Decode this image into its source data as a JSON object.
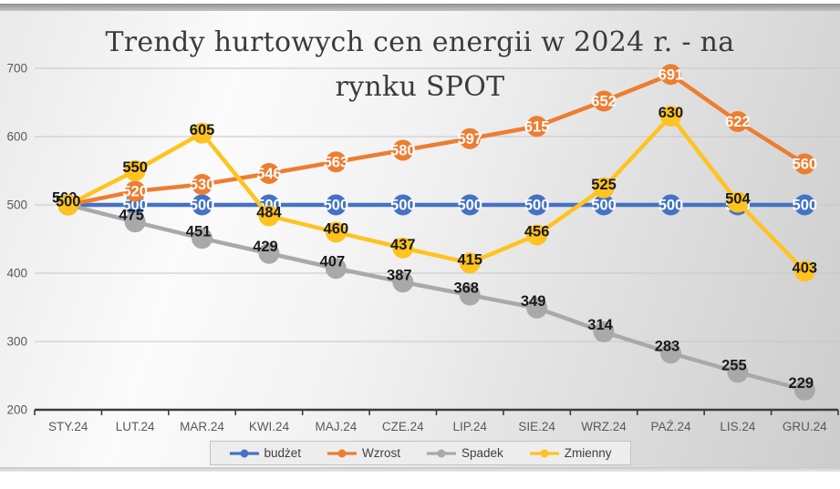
{
  "title": {
    "lines": [
      "Trendy hurtowych cen energii w 2024 r. - na",
      "rynku SPOT"
    ],
    "full": "Trendy hurtowych cen energii w 2024 r. - na rynku SPOT"
  },
  "chart_data": {
    "type": "line",
    "title": "Trendy hurtowych cen energii w 2024 r. - na rynku SPOT",
    "categories": [
      "STY.24",
      "LUT.24",
      "MAR.24",
      "KWI.24",
      "MAJ.24",
      "CZE.24",
      "LIP.24",
      "SIE.24",
      "WRZ.24",
      "PAŹ.24",
      "LIS.24",
      "GRU.24"
    ],
    "series": [
      {
        "name": "budżet",
        "color": "#4472c4",
        "label_color": "#ffffff",
        "values": [
          500,
          500,
          500,
          500,
          500,
          500,
          500,
          500,
          500,
          500,
          500,
          500
        ]
      },
      {
        "name": "Wzrost",
        "color": "#ed7d31",
        "label_color": "#ffffff",
        "values": [
          500,
          520,
          530,
          546,
          563,
          580,
          597,
          615,
          652,
          691,
          622,
          560
        ]
      },
      {
        "name": "Spadek",
        "color": "#a9a9a9",
        "label_color": "#1a1a1a",
        "values": [
          500,
          475,
          451,
          429,
          407,
          387,
          368,
          349,
          314,
          283,
          255,
          229
        ]
      },
      {
        "name": "Zmienny",
        "color": "#ffc320",
        "label_color": "#1a1a1a",
        "values": [
          500,
          550,
          605,
          484,
          460,
          437,
          415,
          456,
          525,
          630,
          504,
          403
        ]
      }
    ],
    "ylim": [
      200,
      700
    ],
    "yticks": [
      200,
      300,
      400,
      500,
      600,
      700
    ],
    "grid": true,
    "data_labels": true,
    "legend_position": "bottom",
    "axis_text_color": "#595959",
    "gridline_color": "#c6c6c6",
    "axis_line_color": "#3c3c3c"
  }
}
